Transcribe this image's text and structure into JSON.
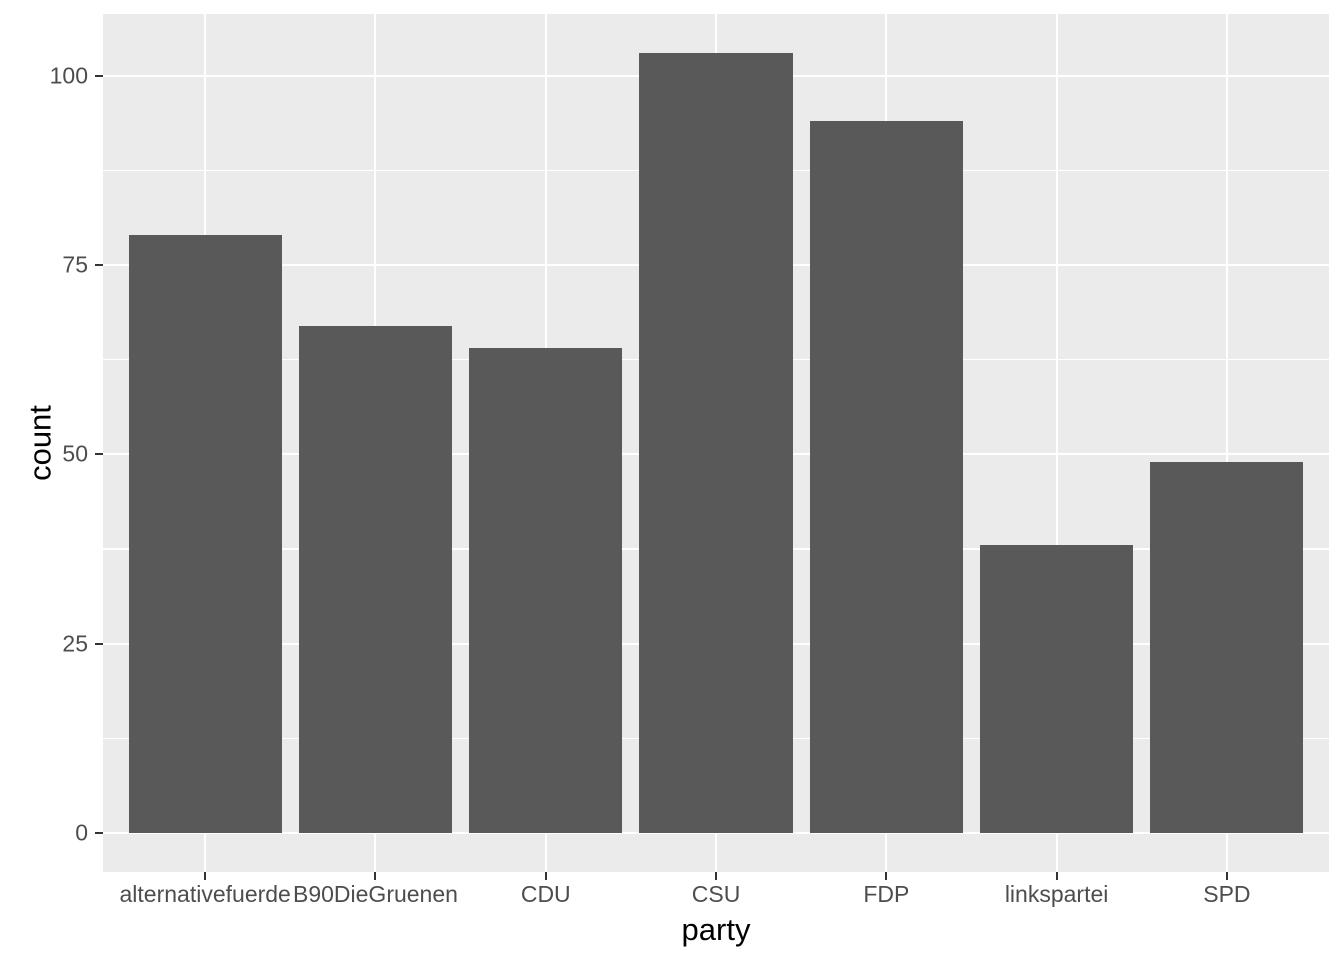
{
  "chart_data": {
    "type": "bar",
    "title": "",
    "categories": [
      "alternativefuerde",
      "B90DieGruenen",
      "CDU",
      "CSU",
      "FDP",
      "linkspartei",
      "SPD"
    ],
    "values": [
      79,
      67,
      64,
      103,
      94,
      38,
      49
    ],
    "xlabel": "party",
    "ylabel": "count",
    "y_major_ticks": [
      0,
      25,
      50,
      75,
      100
    ],
    "y_minor_ticks": [
      12.5,
      37.5,
      62.5,
      87.5
    ],
    "ylim": [
      -5.2,
      108.2
    ],
    "grid": true,
    "legend_position": "none",
    "colors": {
      "bar_fill": "#595959",
      "panel_background": "#EBEBEB",
      "grid_line": "#FFFFFF",
      "tick_label": "#4D4D4D",
      "axis_title": "#000000",
      "tick_mark": "#333333",
      "figure_background": "#FFFFFF"
    }
  }
}
